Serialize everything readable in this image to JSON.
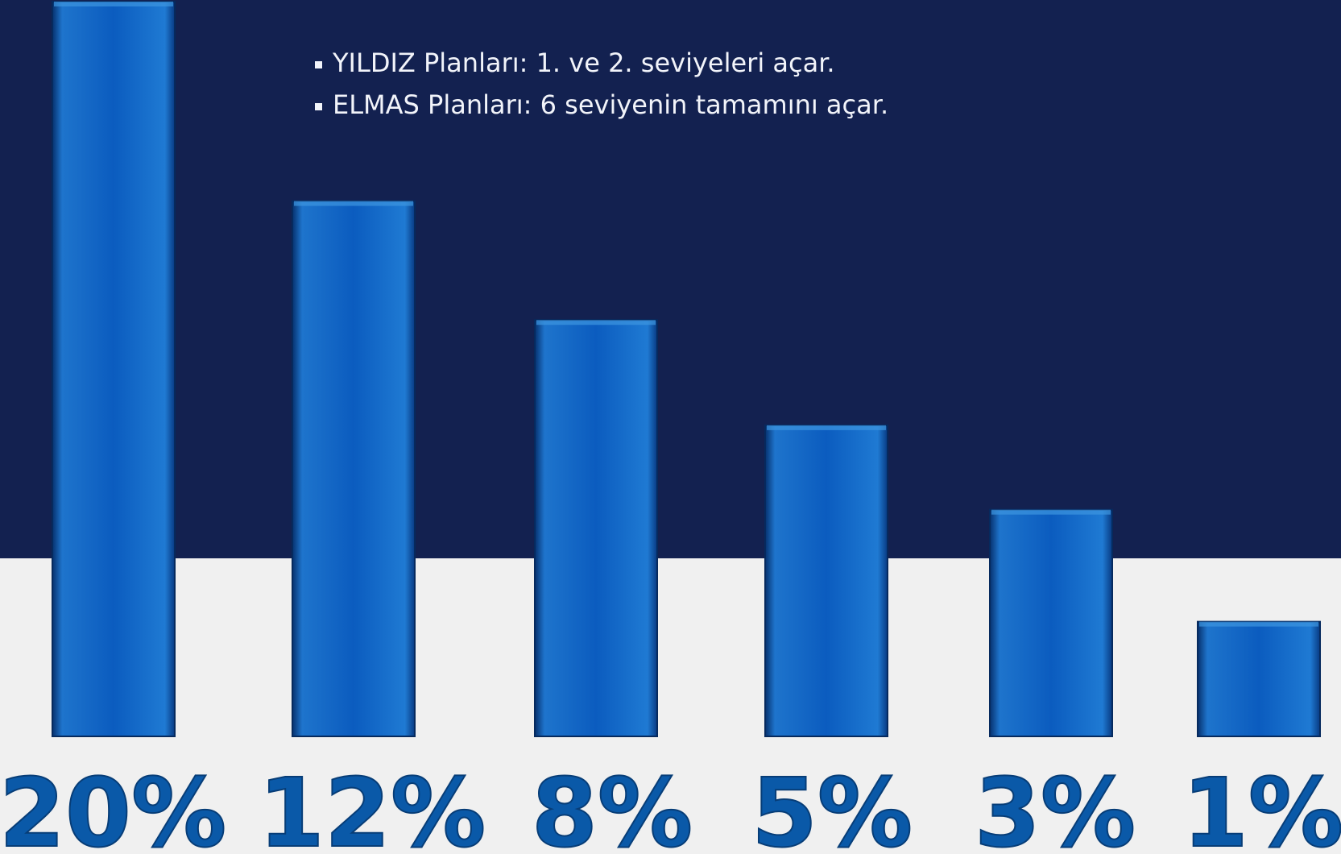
{
  "bullets": [
    "YILDIZ Planları: 1. ve 2. seviyeleri açar.",
    "ELMAS Planları: 6 seviyenin tamamını açar."
  ],
  "colors": {
    "top_background": "#132150",
    "bottom_background": "#f0f0f0",
    "bar_light": "#2a86d6",
    "bar_mid": "#0b5cbf",
    "bar_dark": "#0a3d8c",
    "label_fill": "#0a59a8"
  },
  "chart_data": {
    "type": "bar",
    "categories": [
      "20%",
      "12%",
      "8%",
      "5%",
      "3%",
      "1%"
    ],
    "values": [
      20,
      12,
      8,
      5,
      3,
      1
    ],
    "title": "",
    "xlabel": "",
    "ylabel": "",
    "grid": false,
    "legend": "none"
  }
}
